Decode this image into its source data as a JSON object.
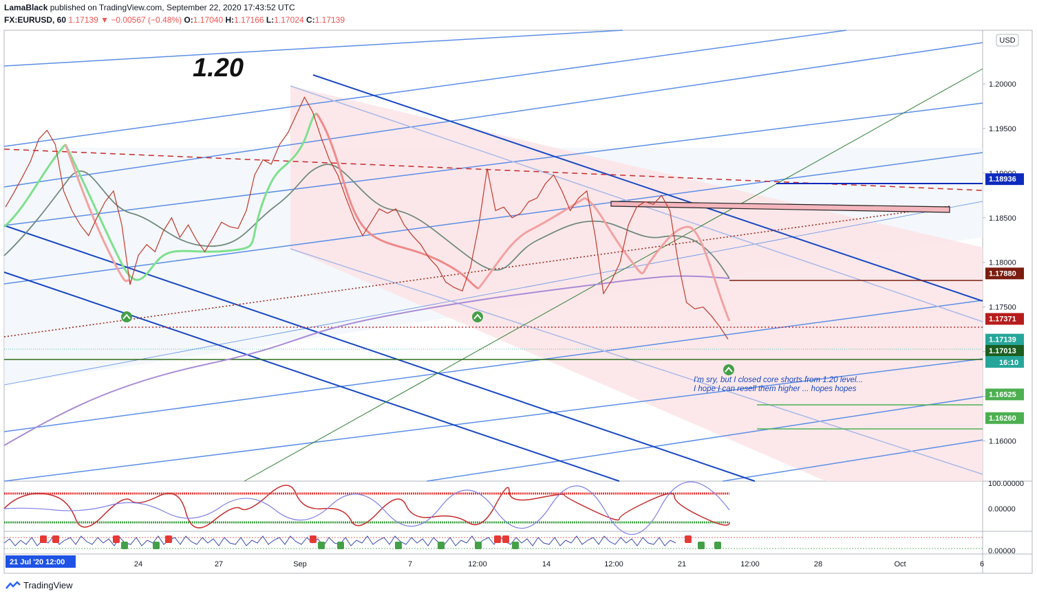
{
  "header": {
    "publisher": "LamaBlack",
    "published_text": "published on TradingView.com, September 22, 2020 17:43:52 UTC",
    "symbol": "FX:EURUSD, 60",
    "last": "1.17139",
    "change": "▼ −0.00567 (−0.48%)",
    "o_label": "O:",
    "o_val": "1.17040",
    "h_label": "H:",
    "h_val": "1.17166",
    "l_label": "L:",
    "l_val": "1.17024",
    "c_label": "C:",
    "c_val": "1.17139"
  },
  "annotation": {
    "target_label": "1.20",
    "note_line1": "I'm sry, but I closed core shorts from 1.20 level...",
    "note_line2": "I hope I can resell them higher ... hopes hopes"
  },
  "axis": {
    "currency": "USD",
    "time_cursor": "21 Jul '20   12:00",
    "countdown": "16:10",
    "osc1_ticks": [
      "100.00000",
      "0.00000"
    ],
    "osc2_ticks": [
      "0.00000"
    ]
  },
  "price_tags": [
    {
      "label": "1.18936",
      "color": "#0d2bbd"
    },
    {
      "label": "1.17880",
      "color": "#7b1c0e"
    },
    {
      "label": "1.17371",
      "color": "#b71c1c"
    },
    {
      "label": "1.17139",
      "color": "#26a69a"
    },
    {
      "label": "1.17013",
      "color": "#1b5e20"
    },
    {
      "label": "1.16525",
      "color": "#4caf50"
    },
    {
      "label": "1.16260",
      "color": "#4caf50"
    }
  ],
  "chart_data": {
    "type": "line",
    "title": "",
    "xlabel": "",
    "ylabel": "",
    "x_ticks": [
      "24",
      "27",
      "Sep",
      "7",
      "12:00",
      "14",
      "12:00",
      "21",
      "12:00",
      "28",
      "Oct",
      "6"
    ],
    "y_ticks": [
      1.2,
      1.195,
      1.19,
      1.185,
      1.18,
      1.175,
      1.17,
      1.165,
      1.16,
      1.155
    ],
    "y_tick_labels": [
      "1.20000",
      "1.19500",
      "1.19000",
      "1.18500",
      "1.18000",
      "1.17500",
      "1.17000",
      "1.16500",
      "1.16000"
    ],
    "ylim": [
      1.1555,
      1.206
    ],
    "series": [
      {
        "values": [
          1.1862,
          1.1878,
          1.1895,
          1.1913,
          1.1938,
          1.1948,
          1.1932,
          1.188,
          1.1858,
          1.1842,
          1.183,
          1.185,
          1.1868,
          1.188,
          1.1842,
          1.1775,
          1.1808,
          1.182,
          1.1812,
          1.1835,
          1.185,
          1.1828,
          1.1842,
          1.1825,
          1.1812,
          1.1828,
          1.1845,
          1.184,
          1.1838,
          1.1858,
          1.1898,
          1.1915,
          1.191,
          1.1932,
          1.1945,
          1.1965,
          1.1985,
          1.1968,
          1.194,
          1.1915,
          1.1898,
          1.1872,
          1.1848,
          1.183,
          1.1845,
          1.186,
          1.1855,
          1.186,
          1.1842,
          1.183,
          1.182,
          1.1805,
          1.1795,
          1.1778,
          1.1772,
          1.1768,
          1.1795,
          1.1842,
          1.1905,
          1.1858,
          1.1862,
          1.185,
          1.1855,
          1.1868,
          1.1872,
          1.1888,
          1.1898,
          1.188,
          1.1858,
          1.1872,
          1.188,
          1.183,
          1.1765,
          1.178,
          1.18,
          1.1842,
          1.1862,
          1.1868,
          1.1865,
          1.1875,
          1.1858,
          1.18,
          1.1755,
          1.1748,
          1.175,
          1.174,
          1.1728,
          1.1714
        ]
      }
    ],
    "grid": false,
    "legend": "none"
  }
}
